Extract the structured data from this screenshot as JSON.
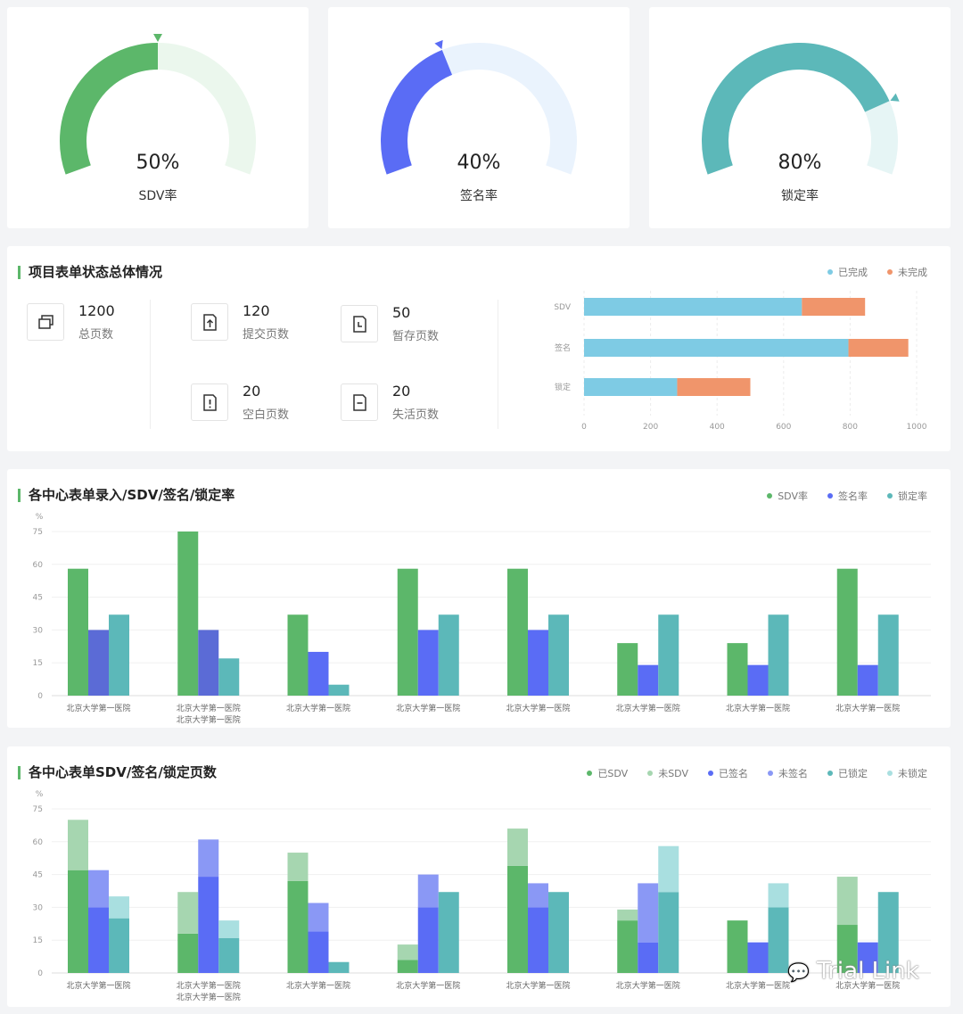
{
  "gauges": [
    {
      "value": 50,
      "value_text": "50%",
      "label": "SDV率",
      "color": "#5cb76a",
      "track": "#ebf7ed"
    },
    {
      "value": 40,
      "value_text": "40%",
      "label": "签名率",
      "color": "#5a6cf5",
      "track": "#eaf3fd"
    },
    {
      "value": 80,
      "value_text": "80%",
      "label": "锁定率",
      "color": "#5cb8b9",
      "track": "#e6f5f5"
    }
  ],
  "overview": {
    "title": "项目表单状态总体情况",
    "legend": [
      {
        "label": "已完成",
        "color": "#7ecbe4"
      },
      {
        "label": "未完成",
        "color": "#f0956b"
      }
    ],
    "stats": [
      {
        "value": "1200",
        "label": "总页数",
        "icon": "pages-icon"
      },
      {
        "value": "120",
        "label": "提交页数",
        "icon": "upload-icon"
      },
      {
        "value": "50",
        "label": "暂存页数",
        "icon": "draft-icon"
      },
      {
        "value": "20",
        "label": "空白页数",
        "icon": "alert-icon"
      },
      {
        "value": "20",
        "label": "失活页数",
        "icon": "inactive-icon"
      }
    ]
  },
  "chart_data": [
    {
      "type": "bar",
      "orientation": "horizontal",
      "stacked": true,
      "categories": [
        "SDV",
        "签名",
        "锁定"
      ],
      "series": [
        {
          "name": "已完成",
          "color": "#7ecbe4",
          "values": [
            655,
            795,
            280
          ]
        },
        {
          "name": "未完成",
          "color": "#f0956b",
          "values": [
            190,
            180,
            220
          ]
        }
      ],
      "xlim": [
        0,
        1000
      ],
      "xticks": [
        0,
        200,
        400,
        600,
        800,
        1000
      ],
      "grid": true
    },
    {
      "type": "bar",
      "title": "各中心表单录入/SDV/签名/锁定率",
      "ylabel": "%",
      "ylim": [
        0,
        75
      ],
      "yticks": [
        0,
        15,
        30,
        45,
        60,
        75
      ],
      "categories": [
        "北京大学第一医院",
        "北京大学第一医院\n北京大学第一医院",
        "北京大学第一医院",
        "北京大学第一医院",
        "北京大学第一医院",
        "北京大学第一医院",
        "北京大学第一医院",
        "北京大学第一医院"
      ],
      "series": [
        {
          "name": "SDV率",
          "color": "#5cb76a",
          "values": [
            58,
            75,
            37,
            58,
            58,
            24,
            24,
            58
          ]
        },
        {
          "name": "签名率",
          "color": "#5a6cf5",
          "values": [
            30,
            30,
            20,
            30,
            30,
            14,
            14,
            14
          ]
        },
        {
          "name": "锁定率",
          "color": "#5cb8b9",
          "values": [
            37,
            17,
            5,
            37,
            37,
            37,
            37,
            37
          ]
        }
      ],
      "legend": "top-right",
      "grid": true
    },
    {
      "type": "bar",
      "stacked_groups": true,
      "title": "各中心表单SDV/签名/锁定页数",
      "ylabel": "%",
      "ylim": [
        0,
        75
      ],
      "yticks": [
        0,
        15,
        30,
        45,
        60,
        75
      ],
      "categories": [
        "北京大学第一医院",
        "北京大学第一医院\n北京大学第一医院",
        "北京大学第一医院",
        "北京大学第一医院",
        "北京大学第一医院",
        "北京大学第一医院",
        "北京大学第一医院",
        "北京大学第一医院"
      ],
      "groups": [
        {
          "series": [
            {
              "name": "已SDV",
              "color": "#5cb76a",
              "values": [
                47,
                18,
                42,
                6,
                49,
                24,
                24,
                22
              ]
            },
            {
              "name": "未SDV",
              "color": "#a6d6b0",
              "values": [
                23,
                19,
                13,
                7,
                17,
                5,
                0,
                22
              ]
            }
          ]
        },
        {
          "series": [
            {
              "name": "已签名",
              "color": "#5a6cf5",
              "values": [
                30,
                44,
                19,
                30,
                30,
                14,
                14,
                14
              ]
            },
            {
              "name": "未签名",
              "color": "#8a98f5",
              "values": [
                17,
                17,
                13,
                15,
                11,
                27,
                0,
                0
              ]
            }
          ]
        },
        {
          "series": [
            {
              "name": "已锁定",
              "color": "#5cb8b9",
              "values": [
                25,
                16,
                5,
                37,
                37,
                37,
                30,
                37
              ]
            },
            {
              "name": "未锁定",
              "color": "#a9dfe0",
              "values": [
                10,
                8,
                0,
                0,
                0,
                21,
                11,
                0
              ]
            }
          ]
        }
      ],
      "legend": "top-right",
      "grid": true
    }
  ],
  "chart2": {
    "title": "各中心表单录入/SDV/签名/锁定率",
    "legend": [
      {
        "label": "SDV率",
        "color": "#5cb76a"
      },
      {
        "label": "签名率",
        "color": "#5a6cf5"
      },
      {
        "label": "锁定率",
        "color": "#5cb8b9"
      }
    ]
  },
  "chart3": {
    "title": "各中心表单SDV/签名/锁定页数",
    "legend": [
      {
        "label": "已SDV",
        "color": "#5cb76a"
      },
      {
        "label": "未SDV",
        "color": "#a6d6b0"
      },
      {
        "label": "已签名",
        "color": "#5a6cf5"
      },
      {
        "label": "未签名",
        "color": "#8a98f5"
      },
      {
        "label": "已锁定",
        "color": "#5cb8b9"
      },
      {
        "label": "未锁定",
        "color": "#a9dfe0"
      }
    ]
  },
  "watermark": "Trial Link"
}
